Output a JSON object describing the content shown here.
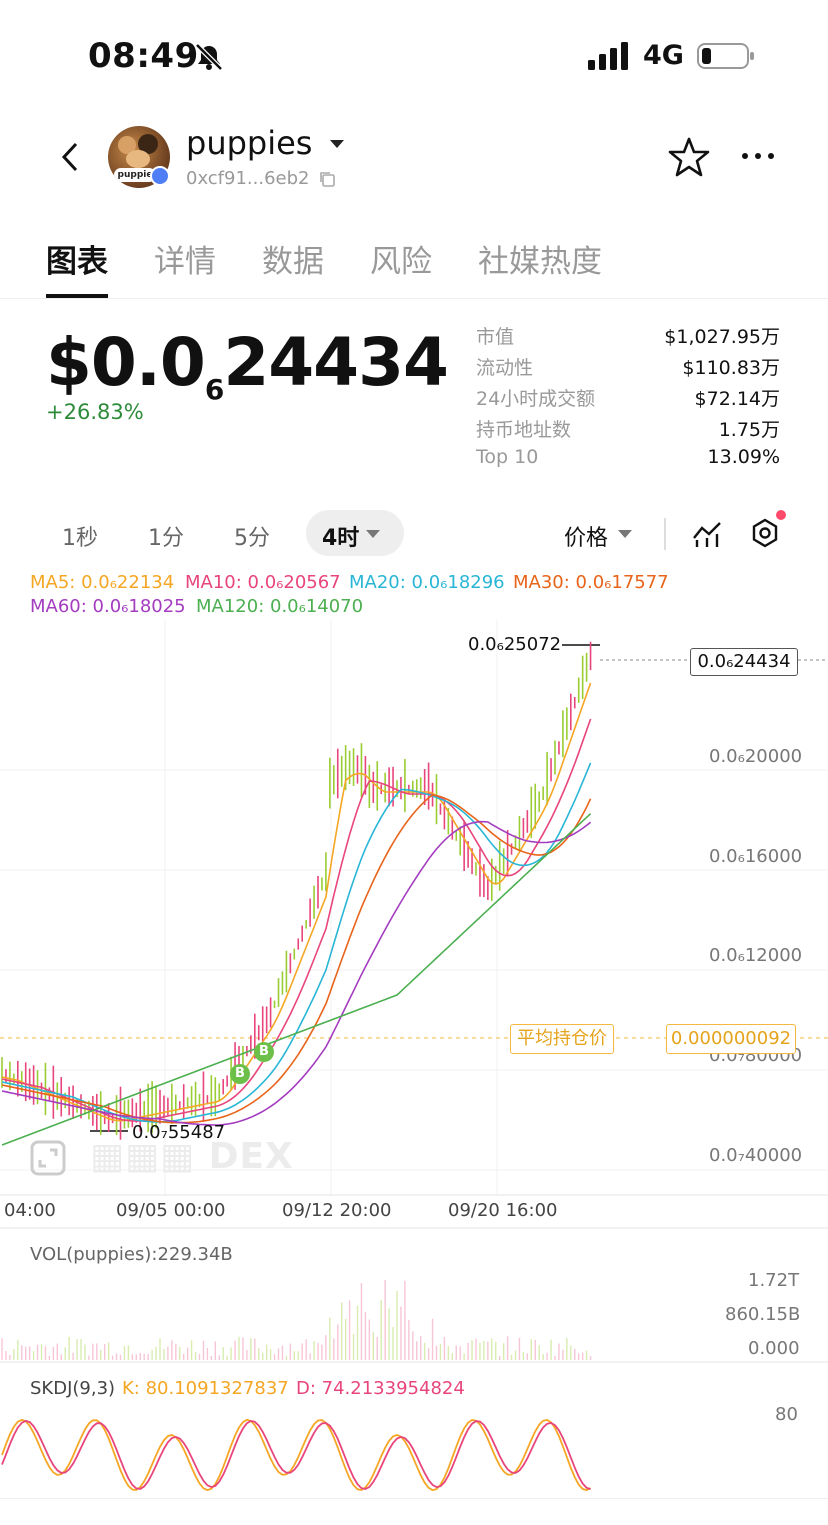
{
  "status_bar": {
    "time": "08:49",
    "network": "4G"
  },
  "header": {
    "token_name": "puppies",
    "address": "0xcf91...6eb2",
    "avatar_text": "puppie",
    "icons": [
      "back-icon",
      "copy-icon",
      "star-icon",
      "more-icon"
    ]
  },
  "tabs": [
    "图表",
    "详情",
    "数据",
    "风险",
    "社媒热度"
  ],
  "price": {
    "prefix": "$0.0",
    "zeros": "6",
    "digits": "24434",
    "change": "+26.83%"
  },
  "stats": [
    {
      "label": "市值",
      "value": "$1,027.95万"
    },
    {
      "label": "流动性",
      "value": "$110.83万"
    },
    {
      "label": "24小时成交额",
      "value": "$72.14万"
    },
    {
      "label": "持币地址数",
      "value": "1.75万"
    },
    {
      "label": "Top 10",
      "value": "13.09%"
    }
  ],
  "timeframes": [
    "1秒",
    "1分",
    "5分"
  ],
  "timeframe_active": "4时",
  "price_mode": "价格",
  "ma_legend": [
    {
      "text": "MA5: 0.0₆22134",
      "color": "#f5a623"
    },
    {
      "text": "MA10: 0.0₆20567",
      "color": "#e8457c"
    },
    {
      "text": "MA20: 0.0₆18296",
      "color": "#29b6d6"
    },
    {
      "text": "MA30: 0.0₆17577",
      "color": "#e8641a"
    },
    {
      "text": "MA60: 0.0₆18025",
      "color": "#a43cc0"
    },
    {
      "text": "MA120: 0.0₆14070",
      "color": "#4caf50"
    }
  ],
  "chart": {
    "high_label": "0.0₆25072",
    "low_label": "0.0₇55487",
    "current_label": "0.0₆24434",
    "y_ticks": [
      "0.0₆20000",
      "0.0₆16000",
      "0.0₆12000",
      "0.0₇80000",
      "0.0₇40000"
    ],
    "x_ticks": [
      "04:00",
      "09/05 00:00",
      "09/12 20:00",
      "09/20 16:00"
    ],
    "avg_hold_label": "平均持仓价",
    "avg_hold_value": "0.000000092",
    "watermark": "DEX",
    "buy_marker": "B"
  },
  "volume": {
    "label": "VOL(puppies):229.34B",
    "ticks": [
      "1.72T",
      "860.15B",
      "0.000"
    ]
  },
  "kdj": {
    "name": "SKDJ(9,3)",
    "k": "K: 80.1091327837",
    "d": "D: 74.2133954824",
    "tick": "80"
  },
  "colors": {
    "up": "#9acd32",
    "down": "#e8457c",
    "accent_green": "#2e8b3a",
    "avg": "#f5b942"
  }
}
